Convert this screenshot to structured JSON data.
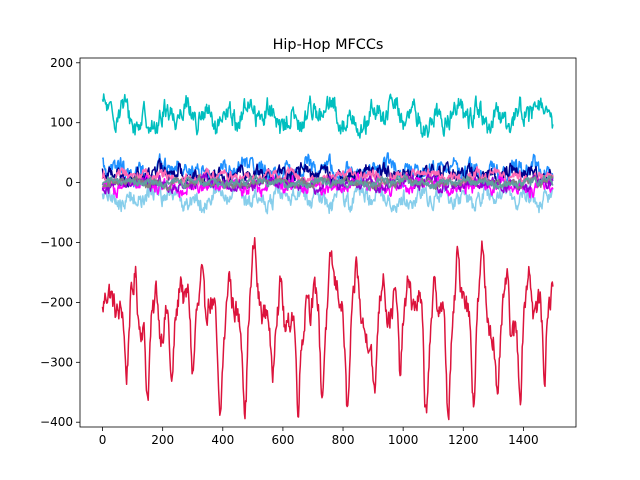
{
  "chart_data": {
    "type": "line",
    "title": "Hip-Hop MFCCs",
    "xlabel": "",
    "ylabel": "",
    "xlim": [
      -75,
      1575
    ],
    "ylim": [
      -408,
      208
    ],
    "x_ticks": [
      0,
      200,
      400,
      600,
      800,
      1000,
      1200,
      1400
    ],
    "y_ticks": [
      200,
      100,
      0,
      -100,
      -200,
      -300,
      -400
    ],
    "y_tick_labels": [
      "200",
      "100",
      "0",
      "−100",
      "−200",
      "−300",
      "−400"
    ],
    "num_frames": 1500,
    "grid": false,
    "legend": "none",
    "series": [
      {
        "color": "#dc143c",
        "mean": -215,
        "amplitude": 45,
        "noise": 18,
        "dips": [
          80,
          150,
          230,
          300,
          390,
          475,
          565,
          650,
          730,
          815,
          905,
          990,
          1075,
          1150,
          1235,
          1315,
          1390,
          1470
        ],
        "dip_depth": 145
      },
      {
        "color": "#00bfbf",
        "mean": 110,
        "amplitude": 25,
        "noise": 15
      },
      {
        "color": "#1e90ff",
        "mean": 20,
        "amplitude": 15,
        "noise": 12
      },
      {
        "color": "#00008b",
        "mean": 15,
        "amplitude": 10,
        "noise": 10
      },
      {
        "color": "#87ceeb",
        "mean": -25,
        "amplitude": 15,
        "noise": 12
      },
      {
        "color": "#ff00ff",
        "mean": -5,
        "amplitude": 10,
        "noise": 9
      },
      {
        "color": "#ff69b4",
        "mean": 10,
        "amplitude": 8,
        "noise": 7
      },
      {
        "color": "#9400d3",
        "mean": -2,
        "amplitude": 8,
        "noise": 7
      },
      {
        "color": "#808080",
        "mean": 0,
        "amplitude": 6,
        "noise": 5
      },
      {
        "color": "#5f9ea0",
        "mean": 0,
        "amplitude": 6,
        "noise": 5
      }
    ]
  }
}
